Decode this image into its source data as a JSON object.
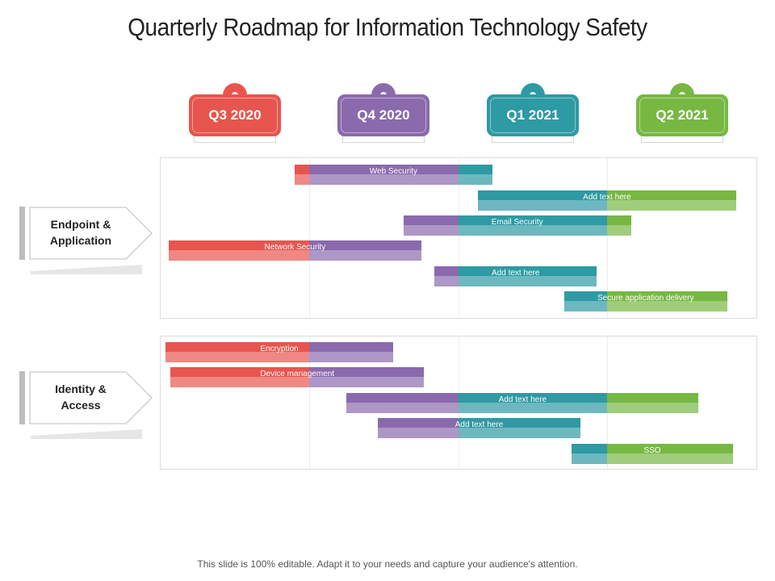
{
  "title": "Quarterly Roadmap for Information Technology Safety",
  "colors": {
    "red": "#e8554e",
    "purple": "#8a6aad",
    "teal": "#2e9aa3",
    "green": "#77b843"
  },
  "quarters": [
    {
      "label": "Q3 2020",
      "color": "red"
    },
    {
      "label": "Q4 2020",
      "color": "purple"
    },
    {
      "label": "Q1 2021",
      "color": "teal"
    },
    {
      "label": "Q2 2021",
      "color": "green"
    }
  ],
  "groups": [
    {
      "label": "Endpoint & Application"
    },
    {
      "label": "Identity & Access"
    }
  ],
  "tasks": [
    {
      "label": "Web Security",
      "group": 0,
      "start": 0.9,
      "end": 2.23
    },
    {
      "label": "Add text here",
      "group": 0,
      "start": 2.13,
      "end": 3.86
    },
    {
      "label": "Email Security",
      "group": 0,
      "start": 1.63,
      "end": 3.16
    },
    {
      "label": "Network Security",
      "group": 0,
      "start": 0.06,
      "end": 1.75
    },
    {
      "label": "Add text here",
      "group": 0,
      "start": 1.84,
      "end": 2.93
    },
    {
      "label": "Secure application  delivery",
      "group": 0,
      "start": 2.71,
      "end": 3.8
    },
    {
      "label": "Encryption",
      "group": 1,
      "start": 0.04,
      "end": 1.56
    },
    {
      "label": "Device management",
      "group": 1,
      "start": 0.07,
      "end": 1.77
    },
    {
      "label": "Add text here",
      "group": 1,
      "start": 1.25,
      "end": 3.61
    },
    {
      "label": "Add text here",
      "group": 1,
      "start": 1.46,
      "end": 2.82
    },
    {
      "label": "SSO",
      "group": 1,
      "start": 2.76,
      "end": 3.84
    }
  ],
  "footer": "This slide is 100% editable. Adapt it to your needs and capture your audience's attention."
}
